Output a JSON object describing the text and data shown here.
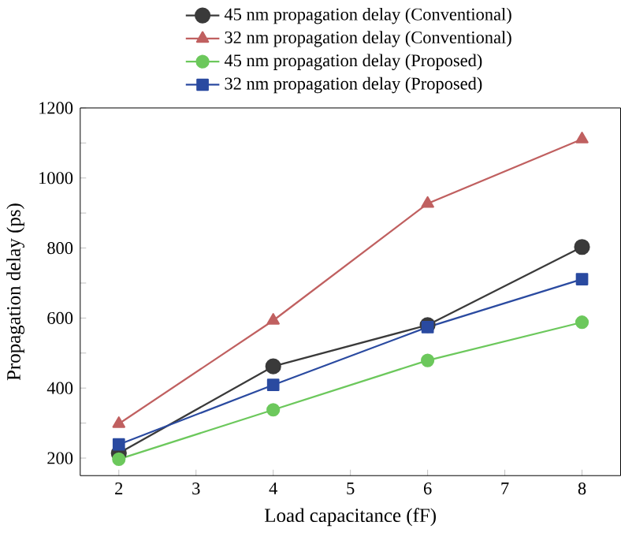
{
  "chart_data": {
    "type": "line",
    "xlabel": "Load capacitance (fF)",
    "ylabel": "Propagation delay (ps)",
    "x": [
      2,
      4,
      6,
      8
    ],
    "series": [
      {
        "name": "45 nm propagation delay (Conventional)",
        "color": "#3a3a3a",
        "marker": "circle",
        "values": [
          214,
          462,
          580,
          803
        ]
      },
      {
        "name": "32 nm propagation delay (Conventional)",
        "color": "#c06060",
        "marker": "triangle",
        "values": [
          298,
          593,
          927,
          1111
        ]
      },
      {
        "name": "45 nm propagation delay (Proposed)",
        "color": "#6cc85c",
        "marker": "circle",
        "values": [
          197,
          338,
          479,
          588
        ]
      },
      {
        "name": "32 nm propagation delay (Proposed)",
        "color": "#2a4aa0",
        "marker": "square",
        "values": [
          239,
          409,
          574,
          711
        ]
      }
    ],
    "xlim": [
      1.5,
      8.5
    ],
    "xticks": [
      2,
      3,
      4,
      5,
      6,
      7,
      8
    ],
    "ylim": [
      150,
      1200
    ],
    "yticks": [
      200,
      {
        "value": 300,
        "label": null
      },
      400,
      {
        "value": 500,
        "label": null
      },
      600,
      {
        "value": 700,
        "label": null
      },
      800,
      {
        "value": 900,
        "label": null
      },
      1000,
      {
        "value": 1100,
        "label": null
      },
      1200
    ],
    "grid": false,
    "legend": "top"
  }
}
